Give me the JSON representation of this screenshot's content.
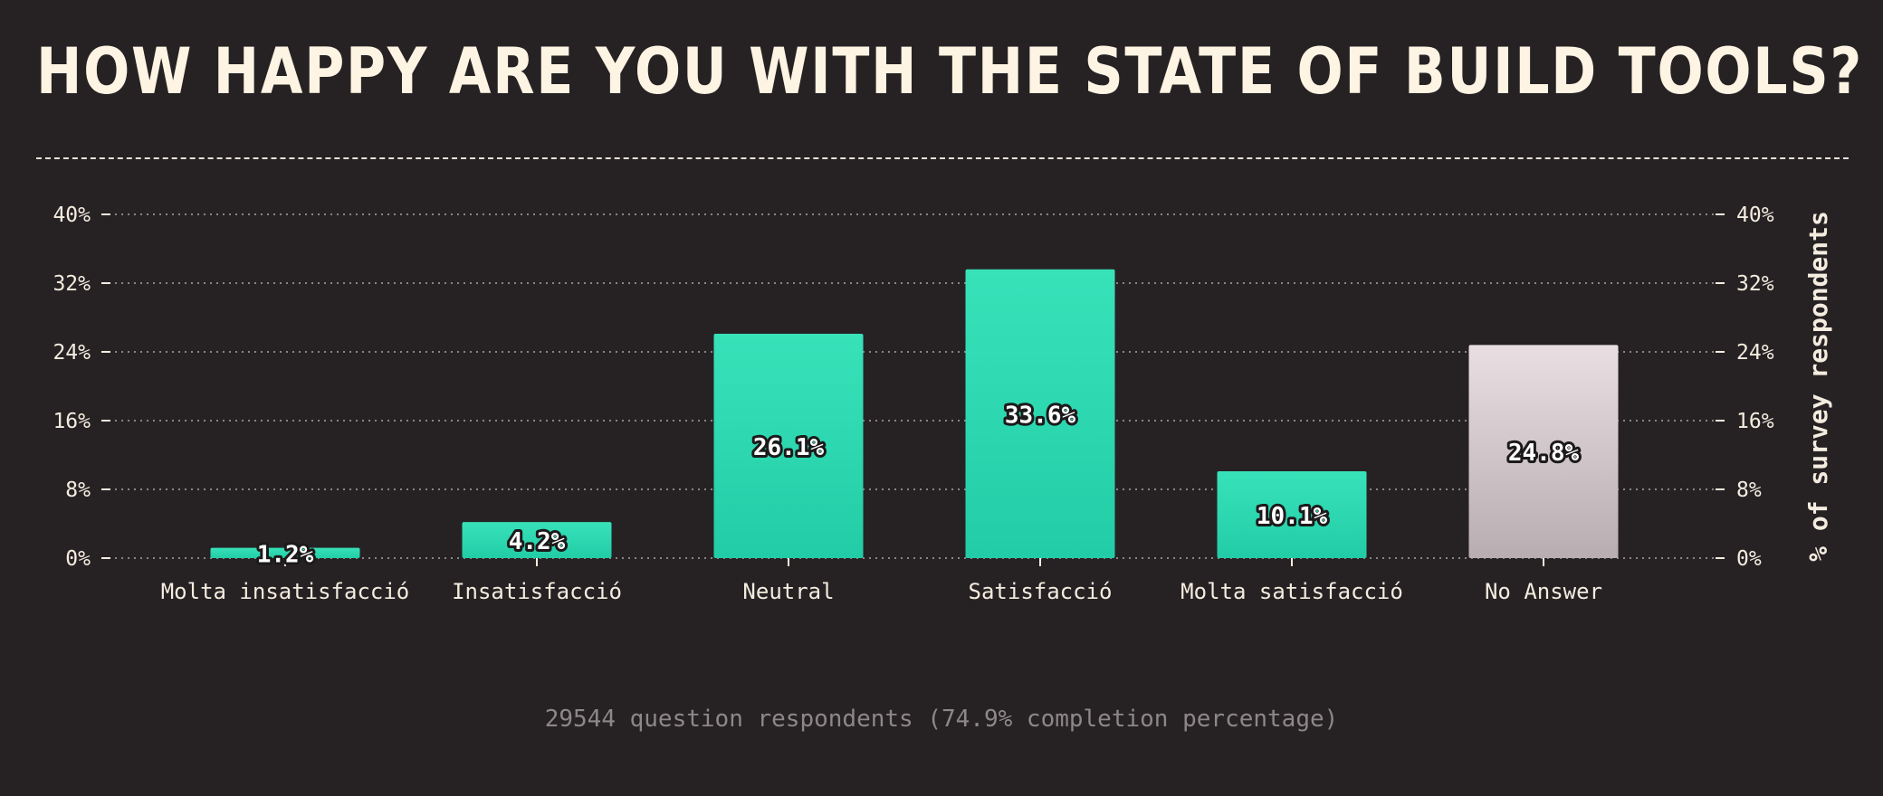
{
  "title": "HOW HAPPY ARE YOU WITH THE STATE OF BUILD TOOLS?",
  "footer": "29544 question respondents (74.9% completion percentage)",
  "colors": {
    "background": "#262224",
    "bar_top": "#38e2b9",
    "bar_bottom": "#22cca6",
    "no_answer_top": "#e9dfe3",
    "no_answer_bottom": "#b8adb1",
    "grid": "#8a8486"
  },
  "chart_data": {
    "type": "bar",
    "categories": [
      "Molta insatisfacció",
      "Insatisfacció",
      "Neutral",
      "Satisfacció",
      "Molta satisfacció",
      "No Answer"
    ],
    "values": [
      1.2,
      4.2,
      26.1,
      33.6,
      10.1,
      24.8
    ],
    "data_labels": [
      "1.2%",
      "4.2%",
      "26.1%",
      "33.6%",
      "10.1%",
      "24.8%"
    ],
    "yticks": [
      0,
      8,
      16,
      24,
      32,
      40
    ],
    "ytick_labels": [
      "0%",
      "8%",
      "16%",
      "24%",
      "32%",
      "40%"
    ],
    "ylim": [
      0,
      40
    ],
    "ylabel_right": "% of survey respondents",
    "grid": true
  }
}
